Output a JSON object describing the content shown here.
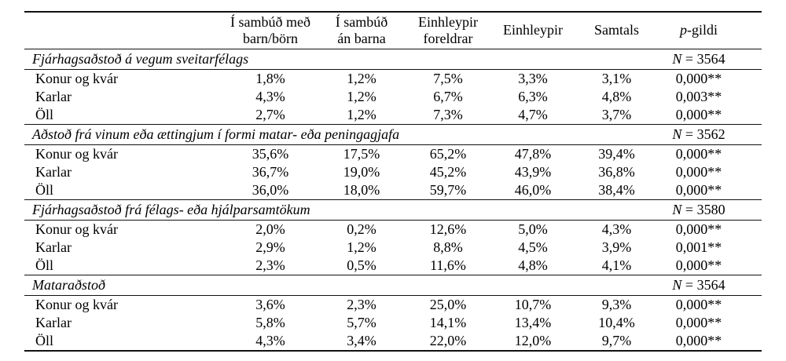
{
  "colors": {
    "text": "#000000",
    "rule_lines": "#111111",
    "background": "#ffffff"
  },
  "table": {
    "header": {
      "col1": "",
      "col2_line1": "Í sambúð með",
      "col2_line2": "barn/börn",
      "col3_line1": "Í sambúð",
      "col3_line2": "án barna",
      "col4_line1": "Einhleypir",
      "col4_line2": "foreldrar",
      "col5": "Einhleypir",
      "col6": "Samtals",
      "p_italic": "p",
      "p_rest": "-gildi"
    },
    "sections": [
      {
        "title": "Fjárhagsaðstoð á vegum sveitarfélags",
        "n_italic": "N",
        "n_rest": " = 3564",
        "rows": [
          {
            "label": "Konur og kvár",
            "values": [
              "1,8%",
              "1,2%",
              "7,5%",
              "3,3%",
              "3,1%",
              "0,000**"
            ]
          },
          {
            "label": "Karlar",
            "values": [
              "4,3%",
              "1,2%",
              "6,7%",
              "6,3%",
              "4,8%",
              "0,003**"
            ]
          },
          {
            "label": "Öll",
            "values": [
              "2,7%",
              "1,2%",
              "7,3%",
              "4,7%",
              "3,7%",
              "0,000**"
            ]
          }
        ]
      },
      {
        "title": "Aðstoð frá vinum eða ættingjum í formi matar- eða peningagjafa",
        "n_italic": "N",
        "n_rest": " = 3562",
        "rows": [
          {
            "label": "Konur og kvár",
            "values": [
              "35,6%",
              "17,5%",
              "65,2%",
              "47,8%",
              "39,4%",
              "0,000**"
            ]
          },
          {
            "label": "Karlar",
            "values": [
              "36,7%",
              "19,0%",
              "45,2%",
              "43,9%",
              "36,8%",
              "0,000**"
            ]
          },
          {
            "label": "Öll",
            "values": [
              "36,0%",
              "18,0%",
              "59,7%",
              "46,0%",
              "38,4%",
              "0,000**"
            ]
          }
        ]
      },
      {
        "title": "Fjárhagsaðstoð frá félags- eða hjálparsamtökum",
        "n_italic": "N",
        "n_rest": " = 3580",
        "rows": [
          {
            "label": "Konur og kvár",
            "values": [
              "2,0%",
              "0,2%",
              "12,6%",
              "5,0%",
              "4,3%",
              "0,000**"
            ]
          },
          {
            "label": "Karlar",
            "values": [
              "2,9%",
              "1,2%",
              "8,8%",
              "4,5%",
              "3,9%",
              "0,001**"
            ]
          },
          {
            "label": "Öll",
            "values": [
              "2,3%",
              "0,5%",
              "11,6%",
              "4,8%",
              "4,1%",
              "0,000**"
            ]
          }
        ]
      },
      {
        "title": "Mataraðstoð",
        "n_italic": "N",
        "n_rest": " = 3564",
        "rows": [
          {
            "label": "Konur og kvár",
            "values": [
              "3,6%",
              "2,3%",
              "25,0%",
              "10,7%",
              "9,3%",
              "0,000**"
            ]
          },
          {
            "label": "Karlar",
            "values": [
              "5,8%",
              "5,7%",
              "14,1%",
              "13,4%",
              "10,4%",
              "0,000**"
            ]
          },
          {
            "label": "Öll",
            "values": [
              "4,3%",
              "3,4%",
              "22,0%",
              "12,0%",
              "9,7%",
              "0,000**"
            ]
          }
        ]
      }
    ]
  }
}
